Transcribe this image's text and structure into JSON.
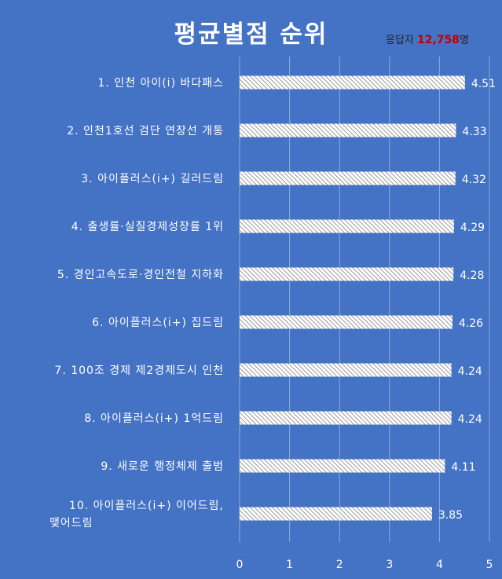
{
  "title": "평균별점 순위",
  "respondents": {
    "prefix": "응답자 ",
    "count": "12,758",
    "suffix": "명"
  },
  "chart_data": {
    "type": "bar",
    "orientation": "horizontal",
    "categories": [
      "1. 인천 아이(i) 바다패스",
      "2. 인천1호선 검단 연장선 개통",
      "3. 아이플러스(i+) 길러드림",
      "4. 출생률·실질경제성장률 1위",
      "5. 경인고속도로·경인전철 지하화",
      "6. 아이플러스(i+) 집드림",
      "7. 100조 경제 제2경제도시 인천",
      "8. 아이플러스(i+) 1억드림",
      "9. 새로운 행정체제 출범",
      "10. 아이플러스(i+) 이어드림, 맺어드림"
    ],
    "category_lines": [
      [
        "1. 인천 아이(i) 바다패스"
      ],
      [
        "2. 인천1호선 검단 연장선 개통"
      ],
      [
        "3. 아이플러스(i+) 길러드림"
      ],
      [
        "4. 출생률·실질경제성장률 1위"
      ],
      [
        "5. 경인고속도로·경인전철 지하화"
      ],
      [
        "6. 아이플러스(i+) 집드림"
      ],
      [
        "7. 100조 경제 제2경제도시 인천"
      ],
      [
        "8. 아이플러스(i+) 1억드림"
      ],
      [
        "9. 새로운 행정체제 출범"
      ],
      [
        "10. 아이플러스(i+) 이어드림,",
        "맺어드림"
      ]
    ],
    "values": [
      4.51,
      4.33,
      4.32,
      4.29,
      4.28,
      4.26,
      4.24,
      4.24,
      4.11,
      3.85
    ],
    "value_labels": [
      "4.51",
      "4.33",
      "4.32",
      "4.29",
      "4.28",
      "4.26",
      "4.24",
      "4.24",
      "4.11",
      "3.85"
    ],
    "xlim": [
      0,
      5
    ],
    "xticks": [
      "0",
      "1",
      "2",
      "3",
      "4",
      "5"
    ],
    "grid": true,
    "bar_fill": "#ffffff",
    "bar_pattern_stroke": "#7f7f7f",
    "grid_color": "#8FAADC"
  }
}
